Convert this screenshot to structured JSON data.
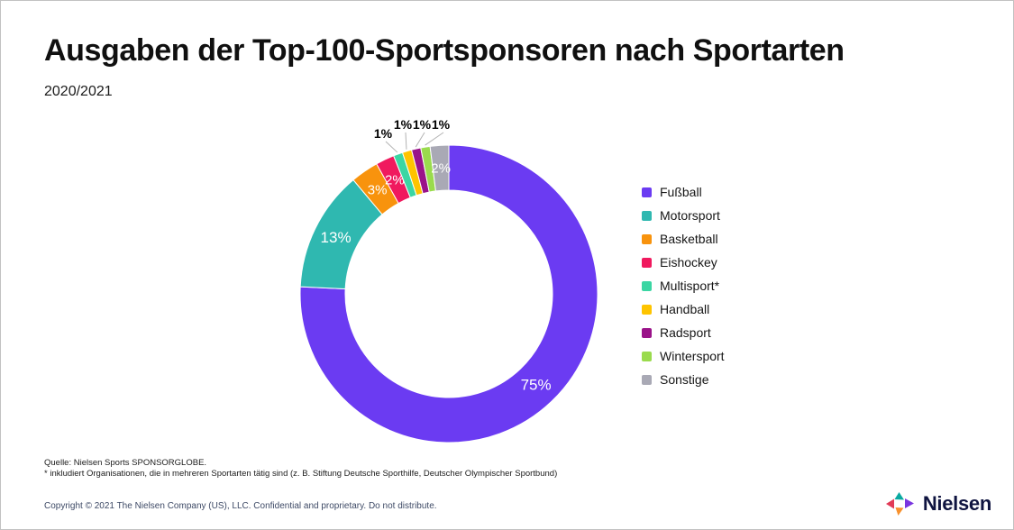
{
  "header": {
    "title": "Ausgaben der Top-100-Sportsponsoren nach Sportarten",
    "subtitle": "2020/2021"
  },
  "chart_data": {
    "type": "pie",
    "donut": true,
    "start_angle_deg": 0,
    "direction": "clockwise",
    "title": "Ausgaben der Top-100-Sportsponsoren nach Sportarten 2020/2021",
    "categories": [
      "Fußball",
      "Motorsport",
      "Basketball",
      "Eishockey",
      "Multisport*",
      "Handball",
      "Radsport",
      "Wintersport",
      "Sonstige"
    ],
    "values": [
      75,
      13,
      3,
      2,
      1,
      1,
      1,
      1,
      2
    ],
    "data_labels": [
      "75%",
      "13%",
      "3%",
      "2%",
      "1%",
      "1%",
      "1%",
      "1%",
      "2%"
    ],
    "colors": [
      "#6B3BF2",
      "#2FB8B0",
      "#F8930D",
      "#F0195E",
      "#3BD6A3",
      "#FEC400",
      "#9A1389",
      "#9ADB4D",
      "#A9A9B5"
    ],
    "legend_position": "right",
    "unit": "%"
  },
  "footer": {
    "source": "Quelle: Nielsen Sports SPONSORGLOBE.",
    "note": "* inkludiert Organisationen, die in mehreren Sportarten tätig sind (z. B. Stiftung Deutsche Sporthilfe, Deutscher Olympischer Sportbund)"
  },
  "bottom_bar": {
    "copyright": "Copyright © 2021 The Nielsen Company (US), LLC. Confidential and proprietary. Do not distribute.",
    "brand": "Nielsen"
  },
  "brand_colors": {
    "mark_red": "#E23A56",
    "mark_teal": "#0AA9A1",
    "mark_orange": "#F8912D",
    "mark_purple": "#7A35E0",
    "wordmark_navy": "#0F1440"
  }
}
